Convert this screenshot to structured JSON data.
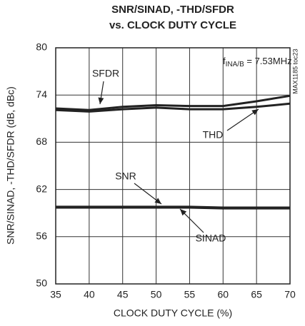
{
  "chart_data": {
    "type": "line",
    "title": [
      "SNR/SINAD, -THD/SFDR",
      "vs. CLOCK DUTY CYCLE"
    ],
    "x_label": "CLOCK DUTY CYCLE (%)",
    "y_label": "SNR/SINAD, -THD/SFDR (dB, dBc)",
    "annotation": {
      "main": "f",
      "sub": "INA/B",
      "rest": " = 7.53MHz"
    },
    "side_note": "MAX1185 toc23",
    "x": [
      35,
      40,
      45,
      50,
      55,
      60,
      65,
      70
    ],
    "series": [
      {
        "name": "SFDR",
        "color": "#222222",
        "values": [
          72.3,
          72.1,
          72.5,
          72.7,
          72.6,
          72.6,
          73.2,
          73.9
        ]
      },
      {
        "name": "THD",
        "color": "#222222",
        "values": [
          72.1,
          71.9,
          72.2,
          72.4,
          72.2,
          72.2,
          72.5,
          72.9
        ]
      },
      {
        "name": "SNR",
        "color": "#222222",
        "values": [
          59.8,
          59.8,
          59.8,
          59.8,
          59.8,
          59.7,
          59.7,
          59.7
        ]
      },
      {
        "name": "SINAD",
        "color": "#222222",
        "values": [
          59.7,
          59.7,
          59.7,
          59.7,
          59.7,
          59.6,
          59.6,
          59.6
        ]
      }
    ],
    "xlim": [
      35,
      70
    ],
    "xticks": [
      35,
      40,
      45,
      50,
      55,
      60,
      65,
      70
    ],
    "ylim": [
      50,
      80
    ],
    "yticks": [
      50,
      56,
      62,
      68,
      74,
      80
    ],
    "grid": true
  }
}
